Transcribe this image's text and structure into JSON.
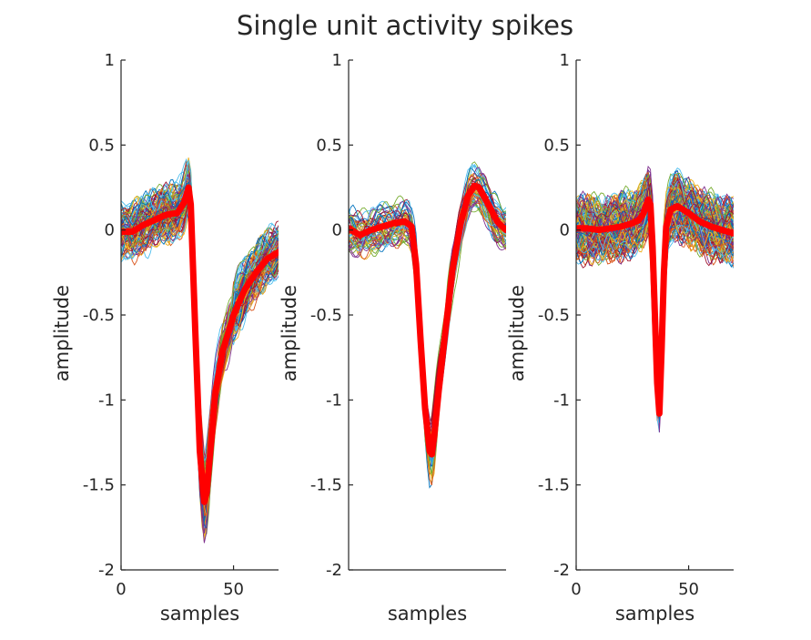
{
  "figure": {
    "title": "Single unit activity spikes"
  },
  "chart_data": [
    {
      "type": "line",
      "panel": "left",
      "xlabel": "samples",
      "ylabel": "amplitude",
      "xlim": [
        0,
        70
      ],
      "ylim": [
        -2,
        1
      ],
      "xticks": [
        0,
        50
      ],
      "yticks": [
        -2,
        -1.5,
        -1,
        -0.5,
        0,
        0.5,
        1
      ],
      "grid": false,
      "legend": "none",
      "waveforms": {
        "count": 100,
        "seed": 11,
        "jitter": 0.13,
        "peak_spread": 0.13,
        "wiggle": 0.05
      },
      "series": [
        {
          "role": "mean",
          "color": "#ff0000",
          "x": [
            0,
            5,
            10,
            15,
            20,
            25,
            28,
            30,
            31,
            33,
            35,
            37,
            38,
            40,
            42,
            45,
            50,
            55,
            60,
            65,
            70
          ],
          "y": [
            -0.01,
            -0.01,
            0.03,
            0.06,
            0.09,
            0.1,
            0.16,
            0.25,
            0.15,
            -0.6,
            -1.3,
            -1.6,
            -1.55,
            -1.25,
            -0.95,
            -0.72,
            -0.5,
            -0.35,
            -0.25,
            -0.17,
            -0.13
          ]
        }
      ]
    },
    {
      "type": "line",
      "panel": "middle",
      "xlabel": "samples",
      "ylabel": "amplitude",
      "xlim": [
        0,
        70
      ],
      "ylim": [
        -2,
        1
      ],
      "xticks": [],
      "yticks": [
        -2,
        -1.5,
        -1,
        -0.5,
        0,
        0.5,
        1
      ],
      "grid": false,
      "legend": "none",
      "waveforms": {
        "count": 55,
        "seed": 23,
        "jitter": 0.1,
        "peak_spread": 0.12,
        "wiggle": 0.04
      },
      "series": [
        {
          "role": "mean",
          "color": "#ff0000",
          "x": [
            0,
            5,
            10,
            15,
            20,
            25,
            28,
            30,
            32,
            34,
            36,
            37,
            38,
            40,
            43,
            46,
            50,
            53,
            56,
            58,
            60,
            63,
            66,
            70
          ],
          "y": [
            0.01,
            -0.03,
            0.0,
            0.02,
            0.04,
            0.05,
            0.02,
            -0.2,
            -0.65,
            -1.05,
            -1.3,
            -1.32,
            -1.22,
            -0.95,
            -0.6,
            -0.25,
            0.05,
            0.2,
            0.26,
            0.25,
            0.2,
            0.13,
            0.05,
            0.0
          ]
        }
      ]
    },
    {
      "type": "line",
      "panel": "right",
      "xlabel": "samples",
      "ylabel": "amplitude",
      "xlim": [
        0,
        70
      ],
      "ylim": [
        -2,
        1
      ],
      "xticks": [
        0,
        50
      ],
      "yticks": [
        -2,
        -1.5,
        -1,
        -0.5,
        0,
        0.5,
        1
      ],
      "grid": false,
      "legend": "none",
      "waveforms": {
        "count": 130,
        "seed": 37,
        "jitter": 0.14,
        "peak_spread": 0.08,
        "wiggle": 0.06
      },
      "series": [
        {
          "role": "mean",
          "color": "#ff0000",
          "x": [
            0,
            5,
            10,
            15,
            20,
            25,
            28,
            30,
            32,
            33,
            34,
            35,
            36,
            37,
            38,
            39,
            40,
            42,
            45,
            50,
            55,
            60,
            65,
            70
          ],
          "y": [
            0.01,
            0.01,
            0.0,
            0.01,
            0.02,
            0.04,
            0.06,
            0.1,
            0.18,
            0.15,
            -0.1,
            -0.5,
            -0.9,
            -1.08,
            -0.7,
            -0.25,
            0.02,
            0.12,
            0.14,
            0.1,
            0.05,
            0.02,
            0.0,
            -0.02
          ]
        }
      ]
    }
  ]
}
